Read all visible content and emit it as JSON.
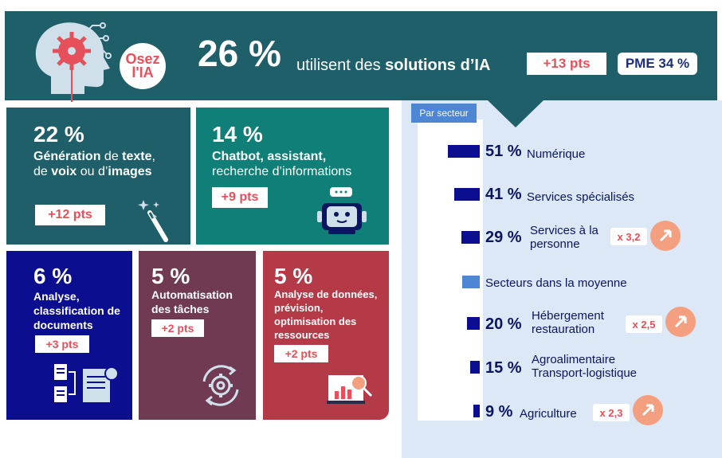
{
  "header": {
    "logo_line1": "Osez",
    "logo_line2": "l'IA",
    "headline_pct": "26 %",
    "headline_pre": "utilisent des ",
    "headline_bold": "solutions d’IA",
    "delta": "+13 pts",
    "pme": "PME 34 %"
  },
  "tiles": [
    {
      "pct": "22 %",
      "desc_b1": "Génération",
      "desc_n1": " de ",
      "desc_b2": "texte",
      "desc_n2": ", de ",
      "desc_b3": "voix",
      "desc_n3": " ou d’",
      "desc_b4": "images",
      "delta": "+12 pts",
      "icon": "magic-wand-icon"
    },
    {
      "pct": "14 %",
      "desc_b": "Chatbot, assistant,",
      "desc_n": "recherche d’informations",
      "delta": "+9 pts",
      "icon": "robot-icon"
    },
    {
      "pct": "6 %",
      "desc": "Analyse, classification de documents",
      "delta": "+3 pts",
      "icon": "documents-icon"
    },
    {
      "pct": "5 %",
      "desc": "Automatisation des tâches",
      "delta": "+2 pts",
      "icon": "gear-cycle-icon"
    },
    {
      "pct": "5 %",
      "desc": "Analyse de données, prévision, optimisation des ressources",
      "delta": "+2 pts",
      "icon": "chart-analysis-icon"
    }
  ],
  "sector_panel": {
    "tab": "Par secteur",
    "rows": [
      {
        "pct": "51 %",
        "label1": "Numérique",
        "label2": "",
        "value": 51
      },
      {
        "pct": "41 %",
        "label1": "Services spécialisés",
        "label2": "",
        "value": 41
      },
      {
        "pct": "29 %",
        "label1": "Services à la",
        "label2": "personne",
        "mult": "x 3,2",
        "value": 29
      },
      {
        "pct": "",
        "label1": "Secteurs dans la  moyenne",
        "label2": ""
      },
      {
        "pct": "20 %",
        "label1": "Hébergement",
        "label2": "restauration",
        "mult": "x 2,5",
        "value": 20
      },
      {
        "pct": "15 %",
        "label1": "Agroalimentaire",
        "label2": "Transport-logistique",
        "value": 15
      },
      {
        "pct": "9 %",
        "label1": "Agriculture",
        "label2": "",
        "mult": "x 2,3",
        "value": 9
      }
    ]
  },
  "colors": {
    "teal_dark": "#1f5f69",
    "teal": "#0f7f77",
    "navy": "#0b0f8f",
    "plum": "#6f3a52",
    "red": "#b43a48",
    "accent": "#e5505a",
    "panel": "#dde8f7"
  }
}
